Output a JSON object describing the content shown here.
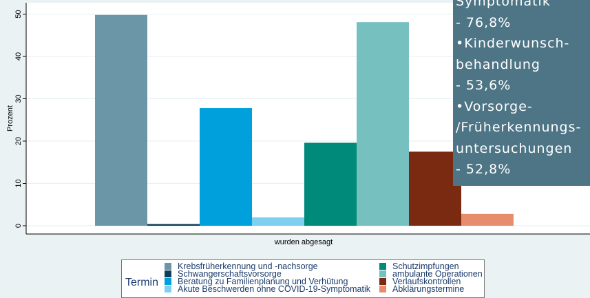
{
  "chart_data": {
    "type": "bar",
    "categories": [
      "wurden abgesagt"
    ],
    "ylabel": "Prozent",
    "xlabel": "",
    "ylim": [
      -2,
      52
    ],
    "yticks": [
      0,
      10,
      20,
      30,
      40,
      50
    ],
    "grid": true,
    "legend_title": "Termin",
    "legend_placement": "bottom",
    "series": [
      {
        "name": "Krebsfrüherkennung und -nachsorge",
        "values": [
          49.8
        ],
        "color": "#6a96a8"
      },
      {
        "name": "Schwangerschaftsvorsorge",
        "values": [
          0.4
        ],
        "color": "#0f3e5a"
      },
      {
        "name": "Beratung zu Familienplanung und Verhütung",
        "values": [
          27.8
        ],
        "color": "#00a0dc"
      },
      {
        "name": "Akute Beschwerden ohne COVID-19-Symptomatik",
        "values": [
          2.0
        ],
        "color": "#7dd0f0"
      },
      {
        "name": "Schutzimpfungen",
        "values": [
          19.6
        ],
        "color": "#008a7a"
      },
      {
        "name": "ambulante Operationen",
        "values": [
          48.1
        ],
        "color": "#76c0c0"
      },
      {
        "name": "Verlaufskontrollen",
        "values": [
          17.5
        ],
        "color": "#7a2a10"
      },
      {
        "name": "Abklärungstermine",
        "values": [
          2.8
        ],
        "color": "#e88c6e"
      }
    ]
  },
  "overlay": {
    "lines": [
      "Symptomatik",
      "- 76,8%",
      "Kinderwunsch-",
      "behandlung",
      "- 53,6%",
      "Vorsorge-",
      "/Früherkennungs-",
      "untersuchungen",
      "- 52,8%"
    ],
    "bullets": [
      false,
      false,
      true,
      false,
      false,
      true,
      false,
      false,
      false
    ],
    "bullet_char": "•"
  }
}
